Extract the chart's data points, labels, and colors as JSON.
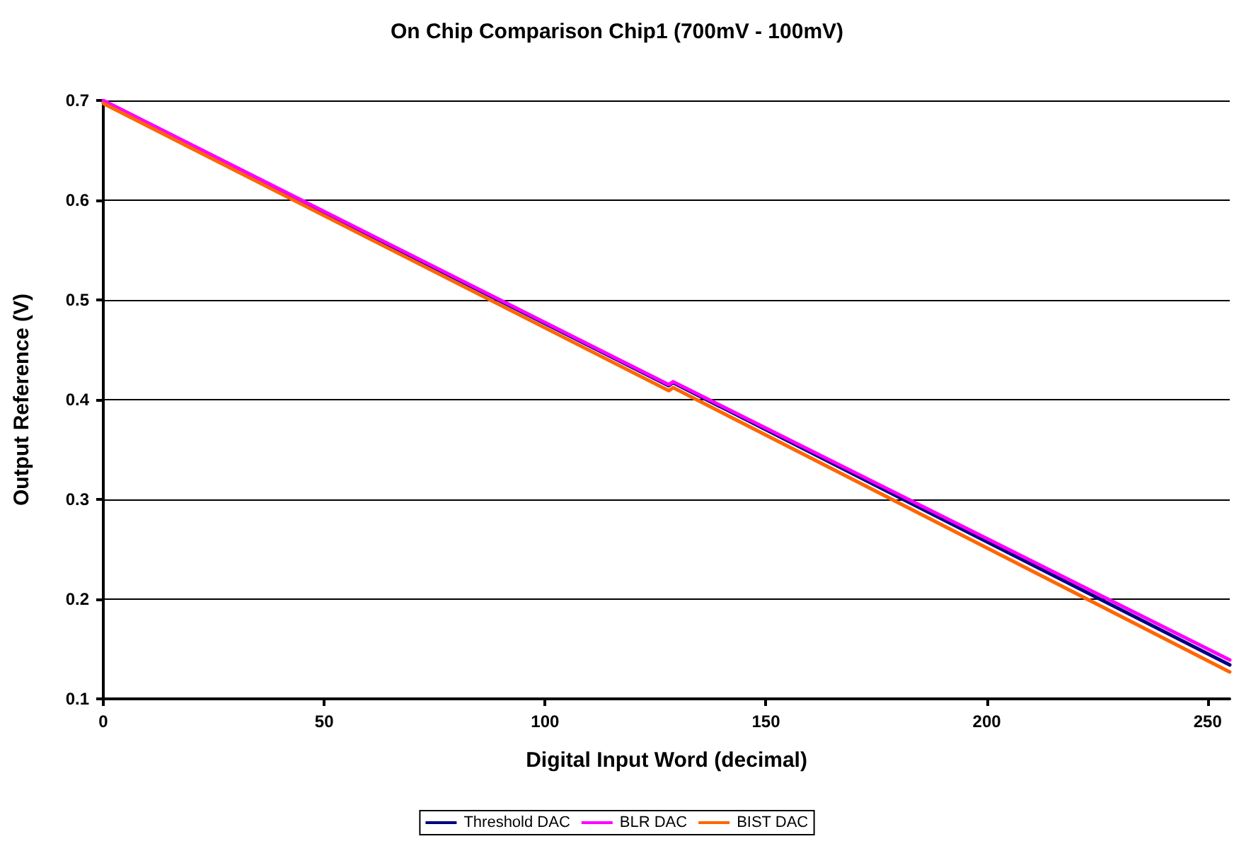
{
  "chart_data": {
    "type": "line",
    "title": "On Chip Comparison Chip1 (700mV - 100mV)",
    "xlabel": "Digital Input Word (decimal)",
    "ylabel": "Output Reference (V)",
    "series": [
      {
        "name": "Threshold DAC",
        "color": "#000080",
        "x": [
          0,
          128,
          129,
          255
        ],
        "values": [
          0.699,
          0.414,
          0.417,
          0.134
        ]
      },
      {
        "name": "BLR DAC",
        "color": "#ff00ff",
        "x": [
          0,
          128,
          129,
          255
        ],
        "values": [
          0.7,
          0.415,
          0.418,
          0.139
        ]
      },
      {
        "name": "BIST DAC",
        "color": "#ff6600",
        "x": [
          0,
          128,
          129,
          255
        ],
        "values": [
          0.697,
          0.409,
          0.412,
          0.127
        ]
      }
    ],
    "xlim": [
      0,
      255
    ],
    "xticks": [
      0,
      50,
      100,
      150,
      200,
      250
    ],
    "ylim": [
      0.1,
      0.7
    ],
    "yticks": [
      0.1,
      0.2,
      0.3,
      0.4,
      0.5,
      0.6,
      0.7
    ],
    "grid": "y",
    "legend": "bottom",
    "marker": "none",
    "line_style": "solid"
  }
}
